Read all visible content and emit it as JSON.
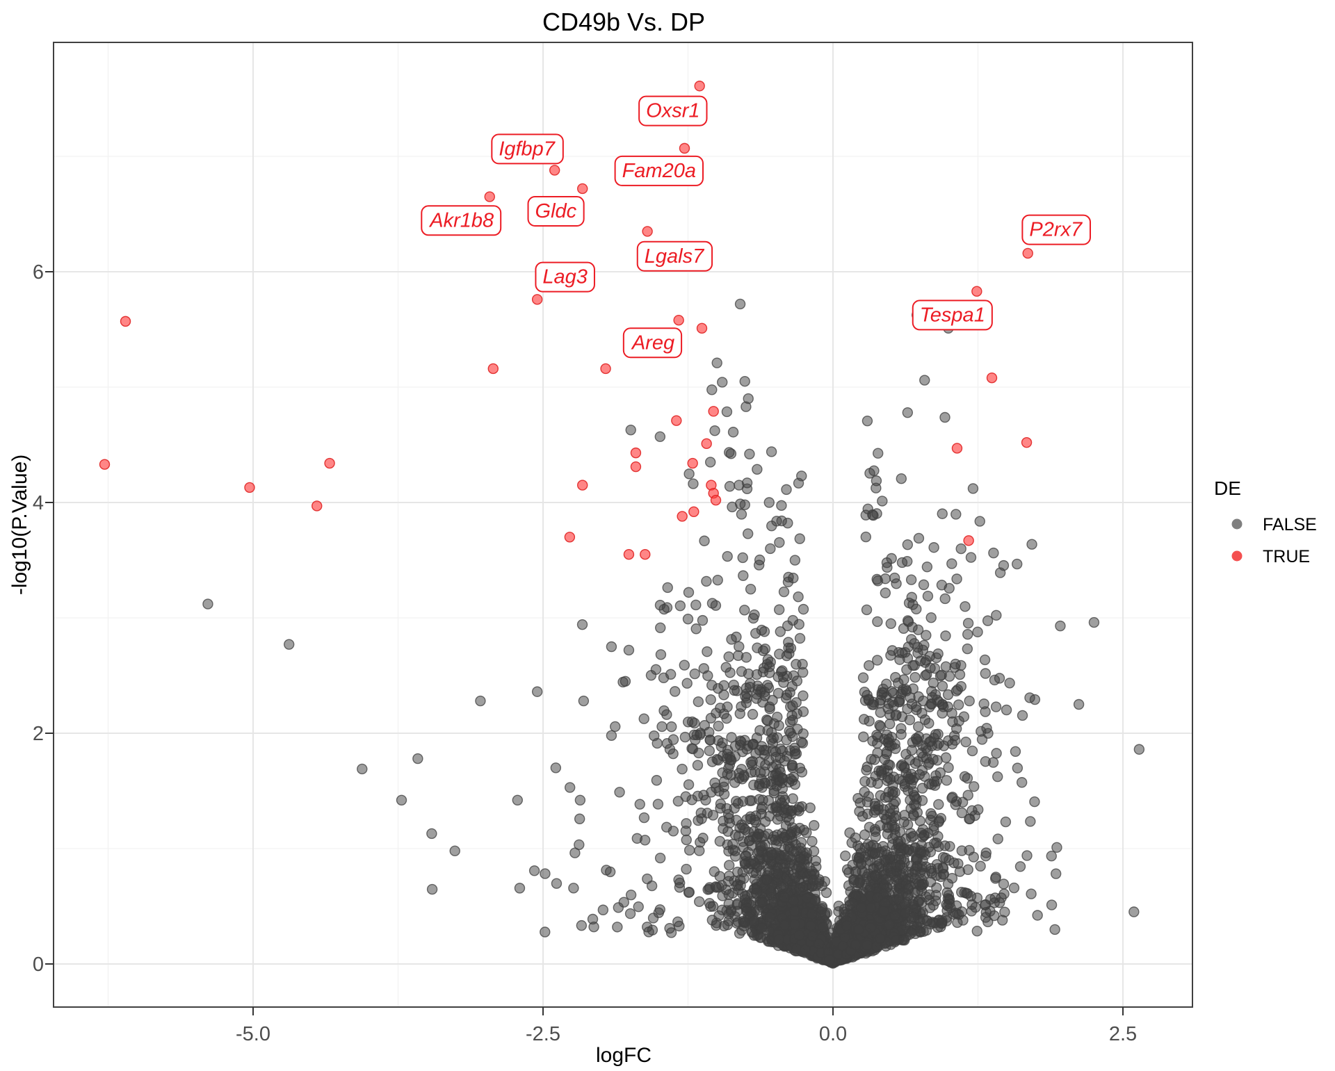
{
  "title": {
    "text": "CD49b Vs. DP"
  },
  "legend": {
    "title": "DE",
    "entries": [
      {
        "label": "FALSE",
        "color": "#7f7f7f"
      },
      {
        "label": "TRUE",
        "color": "#f45050"
      }
    ]
  },
  "axes": {
    "x": {
      "label": "logFC",
      "ticks": [
        {
          "v": -5.0,
          "label": "-5.0"
        },
        {
          "v": -2.5,
          "label": "-2.5"
        },
        {
          "v": 0.0,
          "label": "0.0"
        },
        {
          "v": 2.5,
          "label": "2.5"
        }
      ],
      "minor_ticks": [
        -6.25,
        -3.75,
        -1.25,
        1.25
      ],
      "range": [
        -6.72,
        3.1
      ]
    },
    "y": {
      "label": "-log10(P.Value)",
      "ticks": [
        {
          "v": 0,
          "label": "0"
        },
        {
          "v": 2,
          "label": "2"
        },
        {
          "v": 4,
          "label": "4"
        },
        {
          "v": 6,
          "label": "6"
        }
      ],
      "minor_ticks": [
        1,
        3,
        5,
        7
      ],
      "range": [
        -0.37,
        7.99
      ]
    }
  },
  "colors": {
    "true_fill": "#ff3b3b",
    "true_stroke": "#e02424",
    "false_fill": "#3f3f3f",
    "false_stroke": "#3f3f3f",
    "grid_major": "#e6e6e6",
    "grid_minor": "#f2f2f2",
    "panel_border": "#404040",
    "label_red": "#ec1c24"
  },
  "chart_data": {
    "type": "scatter",
    "subtype": "volcano",
    "title": "CD49b Vs. DP",
    "xlabel": "logFC",
    "ylabel": "-log10(P.Value)",
    "xlim": [
      -6.72,
      3.1
    ],
    "ylim": [
      -0.37,
      7.99
    ],
    "grid": true,
    "legend_position": "right",
    "legend_title": "DE",
    "series_names": [
      "FALSE",
      "TRUE"
    ],
    "labeled_genes": [
      {
        "name": "Oxsr1",
        "x": -1.15,
        "y": 7.61,
        "label_x": -1.38,
        "label_y": 7.4
      },
      {
        "name": "Igfbp7",
        "x": -2.4,
        "y": 6.88,
        "label_x": -2.64,
        "label_y": 7.07
      },
      {
        "name": "Fam20a",
        "x": -1.28,
        "y": 7.07,
        "label_x": -1.5,
        "label_y": 6.88
      },
      {
        "name": "Gldc",
        "x": -2.16,
        "y": 6.72,
        "label_x": -2.39,
        "label_y": 6.53
      },
      {
        "name": "Akr1b8",
        "x": -2.96,
        "y": 6.65,
        "label_x": -3.2,
        "label_y": 6.45
      },
      {
        "name": "Lgals7",
        "x": -1.6,
        "y": 6.35,
        "label_x": -1.37,
        "label_y": 6.14
      },
      {
        "name": "Lag3",
        "x": -2.55,
        "y": 5.76,
        "label_x": -2.31,
        "label_y": 5.96
      },
      {
        "name": "P2rx7",
        "x": 1.68,
        "y": 6.16,
        "label_x": 1.92,
        "label_y": 6.37
      },
      {
        "name": "Tespa1",
        "x": 1.24,
        "y": 5.83,
        "label_x": 1.03,
        "label_y": 5.63
      },
      {
        "name": "Areg",
        "x": -1.96,
        "y": 5.16,
        "label_x": -1.55,
        "label_y": 5.39
      }
    ],
    "true_points": [
      [
        -6.1,
        5.57
      ],
      [
        -6.28,
        4.33
      ],
      [
        -5.03,
        4.13
      ],
      [
        -4.34,
        4.34
      ],
      [
        -4.45,
        3.97
      ],
      [
        -2.93,
        5.16
      ],
      [
        -1.33,
        5.58
      ],
      [
        -1.13,
        5.51
      ],
      [
        -1.03,
        4.79
      ],
      [
        -1.35,
        4.71
      ],
      [
        -1.09,
        4.51
      ],
      [
        -1.7,
        4.43
      ],
      [
        -1.21,
        4.34
      ],
      [
        -1.7,
        4.31
      ],
      [
        -2.16,
        4.15
      ],
      [
        -1.05,
        4.15
      ],
      [
        -1.03,
        4.08
      ],
      [
        -1.01,
        4.02
      ],
      [
        -1.3,
        3.88
      ],
      [
        -1.2,
        3.92
      ],
      [
        -2.27,
        3.7
      ],
      [
        -1.76,
        3.55
      ],
      [
        -1.62,
        3.55
      ],
      [
        1.37,
        5.08
      ],
      [
        1.07,
        4.47
      ],
      [
        1.67,
        4.52
      ],
      [
        1.17,
        3.67
      ]
    ],
    "false_outlier_points": [
      [
        -5.39,
        3.12
      ],
      [
        -4.69,
        2.77
      ],
      [
        -3.04,
        2.28
      ],
      [
        -4.06,
        1.69
      ],
      [
        -3.58,
        1.78
      ],
      [
        -3.72,
        1.42
      ],
      [
        -3.46,
        1.13
      ],
      [
        -3.26,
        0.98
      ],
      [
        -2.55,
        2.36
      ],
      [
        -2.39,
        1.7
      ],
      [
        -2.72,
        1.42
      ],
      [
        -2.15,
        2.28
      ],
      [
        -2.18,
        1.42
      ],
      [
        -1.79,
        2.45
      ],
      [
        -1.91,
        1.98
      ],
      [
        -1.91,
        2.75
      ],
      [
        -1.49,
        3.11
      ],
      [
        -1.76,
        2.72
      ],
      [
        -1.46,
        2.48
      ],
      [
        -1.25,
        2.99
      ],
      [
        -0.8,
        5.72
      ],
      [
        -0.76,
        5.05
      ],
      [
        -1.0,
        5.21
      ],
      [
        -0.73,
        4.9
      ],
      [
        -0.75,
        4.83
      ],
      [
        -0.86,
        4.61
      ],
      [
        -0.72,
        4.42
      ],
      [
        -0.53,
        4.44
      ],
      [
        -0.89,
        4.14
      ],
      [
        -0.81,
        4.15
      ],
      [
        -0.74,
        4.17
      ],
      [
        -0.55,
        4.0
      ],
      [
        -0.76,
        3.98
      ],
      [
        0.79,
        5.06
      ],
      [
        0.74,
        3.69
      ],
      [
        0.87,
        3.61
      ],
      [
        0.64,
        3.49
      ],
      [
        2.64,
        1.86
      ],
      [
        2.12,
        2.25
      ],
      [
        1.93,
        1.01
      ],
      [
        1.48,
        0.45
      ],
      [
        1.96,
        2.93
      ]
    ],
    "background_cloud": {
      "description": "dense gray FALSE point cloud forming V-shaped volcano funnel converging at (0,0)",
      "seed": 42,
      "core": {
        "n": 3000,
        "x_sigma": 0.5,
        "x_offset": 0.015,
        "slope_min": 0.3,
        "t_scale": 1.15,
        "damp_start": 2.2,
        "damp_factor": 0.45,
        "y_cap": 5.6
      },
      "mid": {
        "n": 380,
        "x_offset": 0.25,
        "x_sigma": 0.62,
        "y_base": 1.55,
        "y_exp_scale": 1.05,
        "y_cap": 5.72
      },
      "left_tail": {
        "n": 55,
        "x_start": 1.15,
        "x_sigma": 0.95,
        "y_base": 0.25,
        "y_exp_scale": 0.85,
        "y_cap": 3.35
      },
      "right_tail": {
        "n": 38,
        "x_start": 1.15,
        "x_sigma": 0.5,
        "y_base": 0.25,
        "y_exp_scale": 0.75,
        "y_cap": 2.6
      }
    }
  }
}
